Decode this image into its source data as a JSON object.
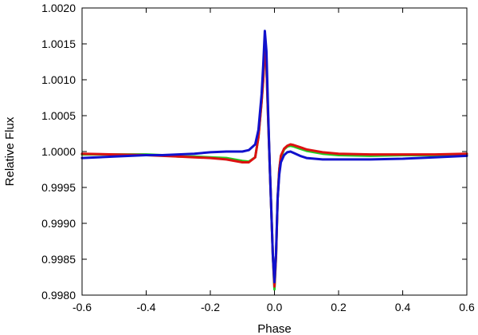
{
  "chart_data": {
    "type": "line",
    "title": "",
    "xlabel": "Phase",
    "ylabel": "Relative Flux",
    "xlim": [
      -0.6,
      0.6
    ],
    "ylim": [
      0.998,
      1.002
    ],
    "xticks": [
      -0.6,
      -0.4,
      -0.2,
      0.0,
      0.2,
      0.4,
      0.6
    ],
    "xtick_labels": [
      "-0.6",
      "-0.4",
      "-0.2",
      "0.0",
      "0.2",
      "0.4",
      "0.6"
    ],
    "yticks": [
      0.998,
      0.9985,
      0.999,
      0.9995,
      1.0,
      1.0005,
      1.001,
      1.0015,
      1.002
    ],
    "ytick_labels": [
      "0.9980",
      "0.9985",
      "0.9990",
      "0.9995",
      "1.0000",
      "1.0005",
      "1.0010",
      "1.0015",
      "1.0020"
    ],
    "grid": false,
    "legend": "none",
    "series": [
      {
        "color": "#22cc22",
        "x": [
          -0.6,
          -0.5,
          -0.4,
          -0.35,
          -0.3,
          -0.25,
          -0.2,
          -0.15,
          -0.1,
          -0.08,
          -0.06,
          -0.05,
          -0.04,
          -0.035,
          -0.03,
          -0.025,
          -0.02,
          -0.015,
          -0.01,
          -0.005,
          0.0,
          0.005,
          0.01,
          0.015,
          0.02,
          0.03,
          0.04,
          0.05,
          0.06,
          0.08,
          0.1,
          0.15,
          0.2,
          0.3,
          0.4,
          0.5,
          0.6
        ],
        "y": [
          0.99996,
          0.99996,
          0.99996,
          0.99995,
          0.99993,
          0.99993,
          0.99992,
          0.99991,
          0.99987,
          0.99986,
          0.99992,
          1.0002,
          1.0007,
          1.001,
          1.00138,
          1.0012,
          1.0005,
          0.99985,
          0.9992,
          0.99855,
          0.99808,
          0.99855,
          0.99935,
          0.99975,
          0.99992,
          1.00003,
          1.00007,
          1.00008,
          1.00007,
          1.00004,
          1.00001,
          0.99997,
          0.99995,
          0.99994,
          0.99995,
          0.99995,
          0.99996
        ]
      },
      {
        "color": "#dd1111",
        "x": [
          -0.6,
          -0.5,
          -0.4,
          -0.35,
          -0.3,
          -0.25,
          -0.2,
          -0.15,
          -0.1,
          -0.08,
          -0.06,
          -0.05,
          -0.04,
          -0.035,
          -0.03,
          -0.025,
          -0.02,
          -0.015,
          -0.01,
          -0.005,
          0.0,
          0.005,
          0.01,
          0.015,
          0.02,
          0.03,
          0.04,
          0.05,
          0.06,
          0.08,
          0.1,
          0.15,
          0.2,
          0.3,
          0.4,
          0.5,
          0.6
        ],
        "y": [
          0.99997,
          0.99996,
          0.99995,
          0.99994,
          0.99993,
          0.99992,
          0.99991,
          0.99989,
          0.99985,
          0.99985,
          0.99992,
          1.0002,
          1.0007,
          1.001,
          1.00142,
          1.0012,
          1.0005,
          0.99985,
          0.9992,
          0.99855,
          0.99812,
          0.99855,
          0.99935,
          0.99975,
          0.99994,
          1.00004,
          1.00008,
          1.0001,
          1.00009,
          1.00006,
          1.00003,
          0.99999,
          0.99997,
          0.99996,
          0.99996,
          0.99996,
          0.99997
        ]
      },
      {
        "color": "#1111cc",
        "x": [
          -0.6,
          -0.5,
          -0.4,
          -0.35,
          -0.3,
          -0.25,
          -0.2,
          -0.15,
          -0.1,
          -0.08,
          -0.06,
          -0.05,
          -0.04,
          -0.035,
          -0.03,
          -0.025,
          -0.02,
          -0.015,
          -0.01,
          -0.005,
          0.0,
          0.005,
          0.01,
          0.015,
          0.02,
          0.03,
          0.04,
          0.05,
          0.06,
          0.08,
          0.1,
          0.15,
          0.2,
          0.3,
          0.4,
          0.5,
          0.6
        ],
        "y": [
          0.99991,
          0.99993,
          0.99995,
          0.99995,
          0.99996,
          0.99997,
          0.99999,
          1.0,
          1.0,
          1.00002,
          1.0001,
          1.0003,
          1.0008,
          1.0012,
          1.00168,
          1.0014,
          1.0006,
          0.99985,
          0.9992,
          0.99855,
          0.99818,
          0.9986,
          0.99935,
          0.99968,
          0.99985,
          0.99995,
          0.99999,
          1.0,
          0.99998,
          0.99994,
          0.99991,
          0.99989,
          0.99989,
          0.99989,
          0.9999,
          0.99992,
          0.99994
        ]
      }
    ]
  }
}
